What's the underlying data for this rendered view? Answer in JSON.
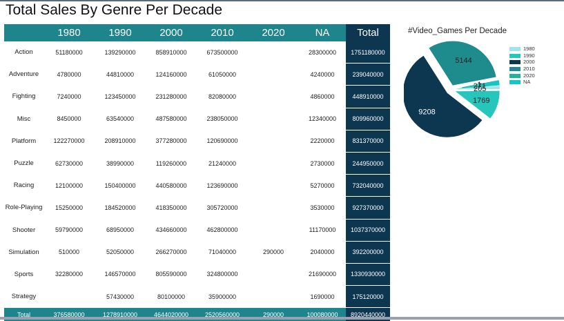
{
  "title": "Total Sales By Genre Per Decade",
  "table": {
    "headers": [
      "",
      "1980",
      "1990",
      "2000",
      "2010",
      "2020",
      "NA",
      "Total"
    ],
    "rows": [
      {
        "genre": "Action",
        "values": [
          "51180000",
          "139290000",
          "858910000",
          "673500000",
          "",
          "28300000",
          "1751180000"
        ]
      },
      {
        "genre": "Adventure",
        "values": [
          "4780000",
          "44810000",
          "124160000",
          "61050000",
          "",
          "4240000",
          "239040000"
        ]
      },
      {
        "genre": "Fighting",
        "values": [
          "7240000",
          "123450000",
          "231280000",
          "82080000",
          "",
          "4860000",
          "448910000"
        ]
      },
      {
        "genre": "Misc",
        "values": [
          "8450000",
          "63540000",
          "487580000",
          "238050000",
          "",
          "12340000",
          "809960000"
        ]
      },
      {
        "genre": "Platform",
        "values": [
          "122270000",
          "208910000",
          "377280000",
          "120690000",
          "",
          "2220000",
          "831370000"
        ]
      },
      {
        "genre": "Puzzle",
        "values": [
          "62730000",
          "38990000",
          "119260000",
          "21240000",
          "",
          "2730000",
          "244950000"
        ]
      },
      {
        "genre": "Racing",
        "values": [
          "12100000",
          "150400000",
          "440580000",
          "123690000",
          "",
          "5270000",
          "732040000"
        ]
      },
      {
        "genre": "Role-Playing",
        "values": [
          "15250000",
          "184520000",
          "418350000",
          "305720000",
          "",
          "3530000",
          "927370000"
        ]
      },
      {
        "genre": "Shooter",
        "values": [
          "59790000",
          "68950000",
          "434660000",
          "462800000",
          "",
          "11170000",
          "1037370000"
        ]
      },
      {
        "genre": "Simulation",
        "values": [
          "510000",
          "52050000",
          "266270000",
          "71040000",
          "290000",
          "2040000",
          "392200000"
        ]
      },
      {
        "genre": "Sports",
        "values": [
          "32280000",
          "146570000",
          "805590000",
          "324800000",
          "",
          "21690000",
          "1330930000"
        ]
      },
      {
        "genre": "Strategy",
        "values": [
          "",
          "57430000",
          "80100000",
          "35900000",
          "",
          "1690000",
          "175120000"
        ]
      }
    ],
    "total_row": {
      "label": "Total",
      "values": [
        "376580000",
        "1278910000",
        "4644020000",
        "2520560000",
        "290000",
        "100080000",
        "8920440000"
      ]
    }
  },
  "chart_data": {
    "type": "pie",
    "title": "#Video_Games Per Decade",
    "categories": [
      "1980",
      "1990",
      "2000",
      "2010",
      "2020",
      "NA"
    ],
    "values": [
      205,
      1769,
      9208,
      5144,
      1,
      271
    ],
    "data_labels": [
      "205",
      "1769",
      "9208",
      "5144",
      "1",
      "271"
    ],
    "colors": [
      "#a3e4ec",
      "#27c6bd",
      "#0d3651",
      "#1e8c8c",
      "#20b49a",
      "#14c7c0"
    ],
    "legend_position": "right",
    "exploded": true
  }
}
